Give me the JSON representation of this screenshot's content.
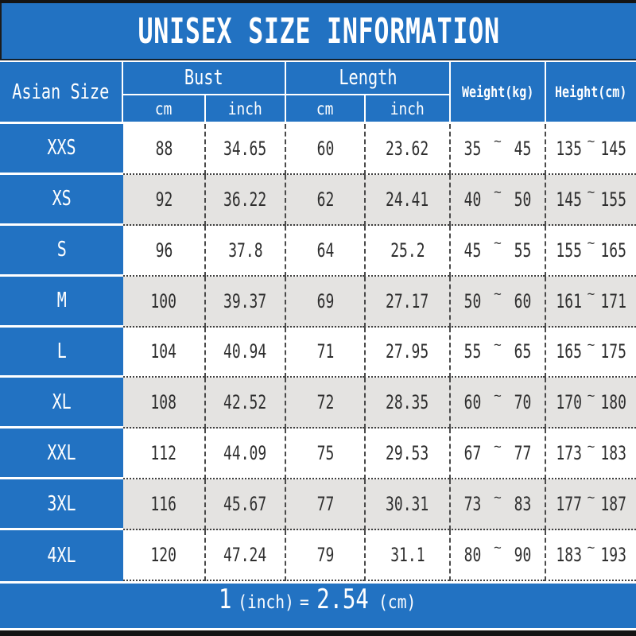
{
  "chart_data": {
    "type": "table",
    "title": "UNISEX SIZE INFORMATION",
    "column_groups": [
      {
        "label": "Asian Size"
      },
      {
        "label": "Bust",
        "sub": [
          "cm",
          "inch"
        ]
      },
      {
        "label": "Length",
        "sub": [
          "cm",
          "inch"
        ]
      },
      {
        "label": "Weight(kg)"
      },
      {
        "label": "Height(cm)"
      }
    ],
    "tilde": "~",
    "rows": [
      {
        "size": "XXS",
        "bust_cm": "88",
        "bust_inch": "34.65",
        "length_cm": "60",
        "length_inch": "23.62",
        "weight_kg": [
          "35",
          "45"
        ],
        "height_cm": [
          "135",
          "145"
        ]
      },
      {
        "size": "XS",
        "bust_cm": "92",
        "bust_inch": "36.22",
        "length_cm": "62",
        "length_inch": "24.41",
        "weight_kg": [
          "40",
          "50"
        ],
        "height_cm": [
          "145",
          "155"
        ]
      },
      {
        "size": "S",
        "bust_cm": "96",
        "bust_inch": "37.8",
        "length_cm": "64",
        "length_inch": "25.2",
        "weight_kg": [
          "45",
          "55"
        ],
        "height_cm": [
          "155",
          "165"
        ]
      },
      {
        "size": "M",
        "bust_cm": "100",
        "bust_inch": "39.37",
        "length_cm": "69",
        "length_inch": "27.17",
        "weight_kg": [
          "50",
          "60"
        ],
        "height_cm": [
          "161",
          "171"
        ]
      },
      {
        "size": "L",
        "bust_cm": "104",
        "bust_inch": "40.94",
        "length_cm": "71",
        "length_inch": "27.95",
        "weight_kg": [
          "55",
          "65"
        ],
        "height_cm": [
          "165",
          "175"
        ]
      },
      {
        "size": "XL",
        "bust_cm": "108",
        "bust_inch": "42.52",
        "length_cm": "72",
        "length_inch": "28.35",
        "weight_kg": [
          "60",
          "70"
        ],
        "height_cm": [
          "170",
          "180"
        ]
      },
      {
        "size": "XXL",
        "bust_cm": "112",
        "bust_inch": "44.09",
        "length_cm": "75",
        "length_inch": "29.53",
        "weight_kg": [
          "67",
          "77"
        ],
        "height_cm": [
          "173",
          "183"
        ]
      },
      {
        "size": "3XL",
        "bust_cm": "116",
        "bust_inch": "45.67",
        "length_cm": "77",
        "length_inch": "30.31",
        "weight_kg": [
          "73",
          "83"
        ],
        "height_cm": [
          "177",
          "187"
        ]
      },
      {
        "size": "4XL",
        "bust_cm": "120",
        "bust_inch": "47.24",
        "length_cm": "79",
        "length_inch": "31.1",
        "weight_kg": [
          "80",
          "90"
        ],
        "height_cm": [
          "183",
          "193"
        ]
      }
    ],
    "footnote": "1(inch)=2.54(cm)",
    "footnote_parts": [
      {
        "text": "1",
        "size": "lg"
      },
      {
        "text": "(inch)",
        "size": "sm"
      },
      {
        "text": "=",
        "size": "sm"
      },
      {
        "text": "2.54",
        "size": "lg"
      },
      {
        "text": "(cm)",
        "size": "sm"
      }
    ],
    "colors": {
      "header_blue": "#2272c2",
      "row_alt_gray": "#e4e3e1",
      "bar_black": "#141414",
      "text_dark": "#2e2e2e"
    }
  }
}
